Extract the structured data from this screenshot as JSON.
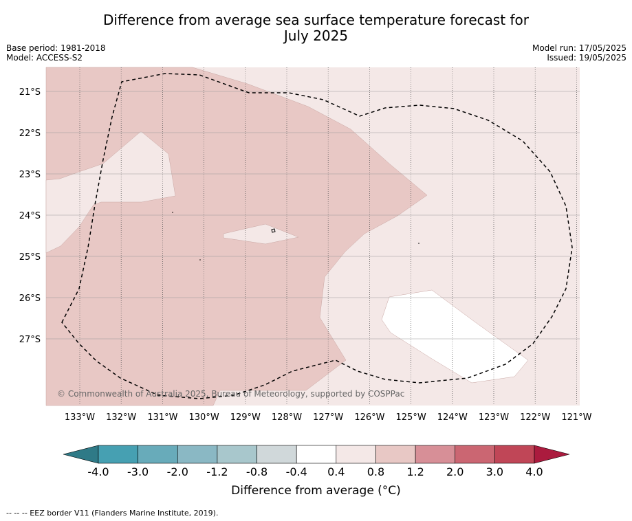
{
  "title": {
    "line1": "Difference from average sea surface temperature forecast for",
    "line2": "July 2025"
  },
  "meta": {
    "base_period": "Base period: 1981-2018",
    "model": "Model: ACCESS-S2",
    "model_run": "Model run: 17/05/2025",
    "issued": "Issued: 19/05/2025"
  },
  "map": {
    "lat_labels": [
      "21°S",
      "22°S",
      "23°S",
      "24°S",
      "25°S",
      "26°S",
      "27°S"
    ],
    "lon_labels": [
      "133°W",
      "132°W",
      "131°W",
      "130°W",
      "129°W",
      "128°W",
      "127°W",
      "126°W",
      "125°W",
      "124°W",
      "123°W",
      "122°W",
      "121°W"
    ],
    "copyright": "© Commonwealth of Australia 2025, Bureau of Meteorology, supported by COSPPac",
    "colors": {
      "anomaly_0_4_to_0_8": "#f4e8e7",
      "anomaly_0_8_to_1_2": "#e8c8c5",
      "anomaly_neg0_4_to_0_4": "#ffffff"
    }
  },
  "colorbar": {
    "label": "Difference from average (°C)",
    "ticks": [
      "-4.0",
      "-3.0",
      "-2.0",
      "-1.2",
      "-0.8",
      "-0.4",
      "0.4",
      "0.8",
      "1.2",
      "2.0",
      "3.0",
      "4.0"
    ],
    "colors": [
      "#2f7a87",
      "#46a0b2",
      "#68abba",
      "#8ab8c4",
      "#a8c7cc",
      "#d0d8da",
      "#ffffff",
      "#f4e8e7",
      "#e8c8c5",
      "#d78f97",
      "#cb6672",
      "#c04657",
      "#ab1b3e"
    ]
  },
  "footnote": "-- -- -- EEZ border V11 (Flanders Marine Institute, 2019)."
}
